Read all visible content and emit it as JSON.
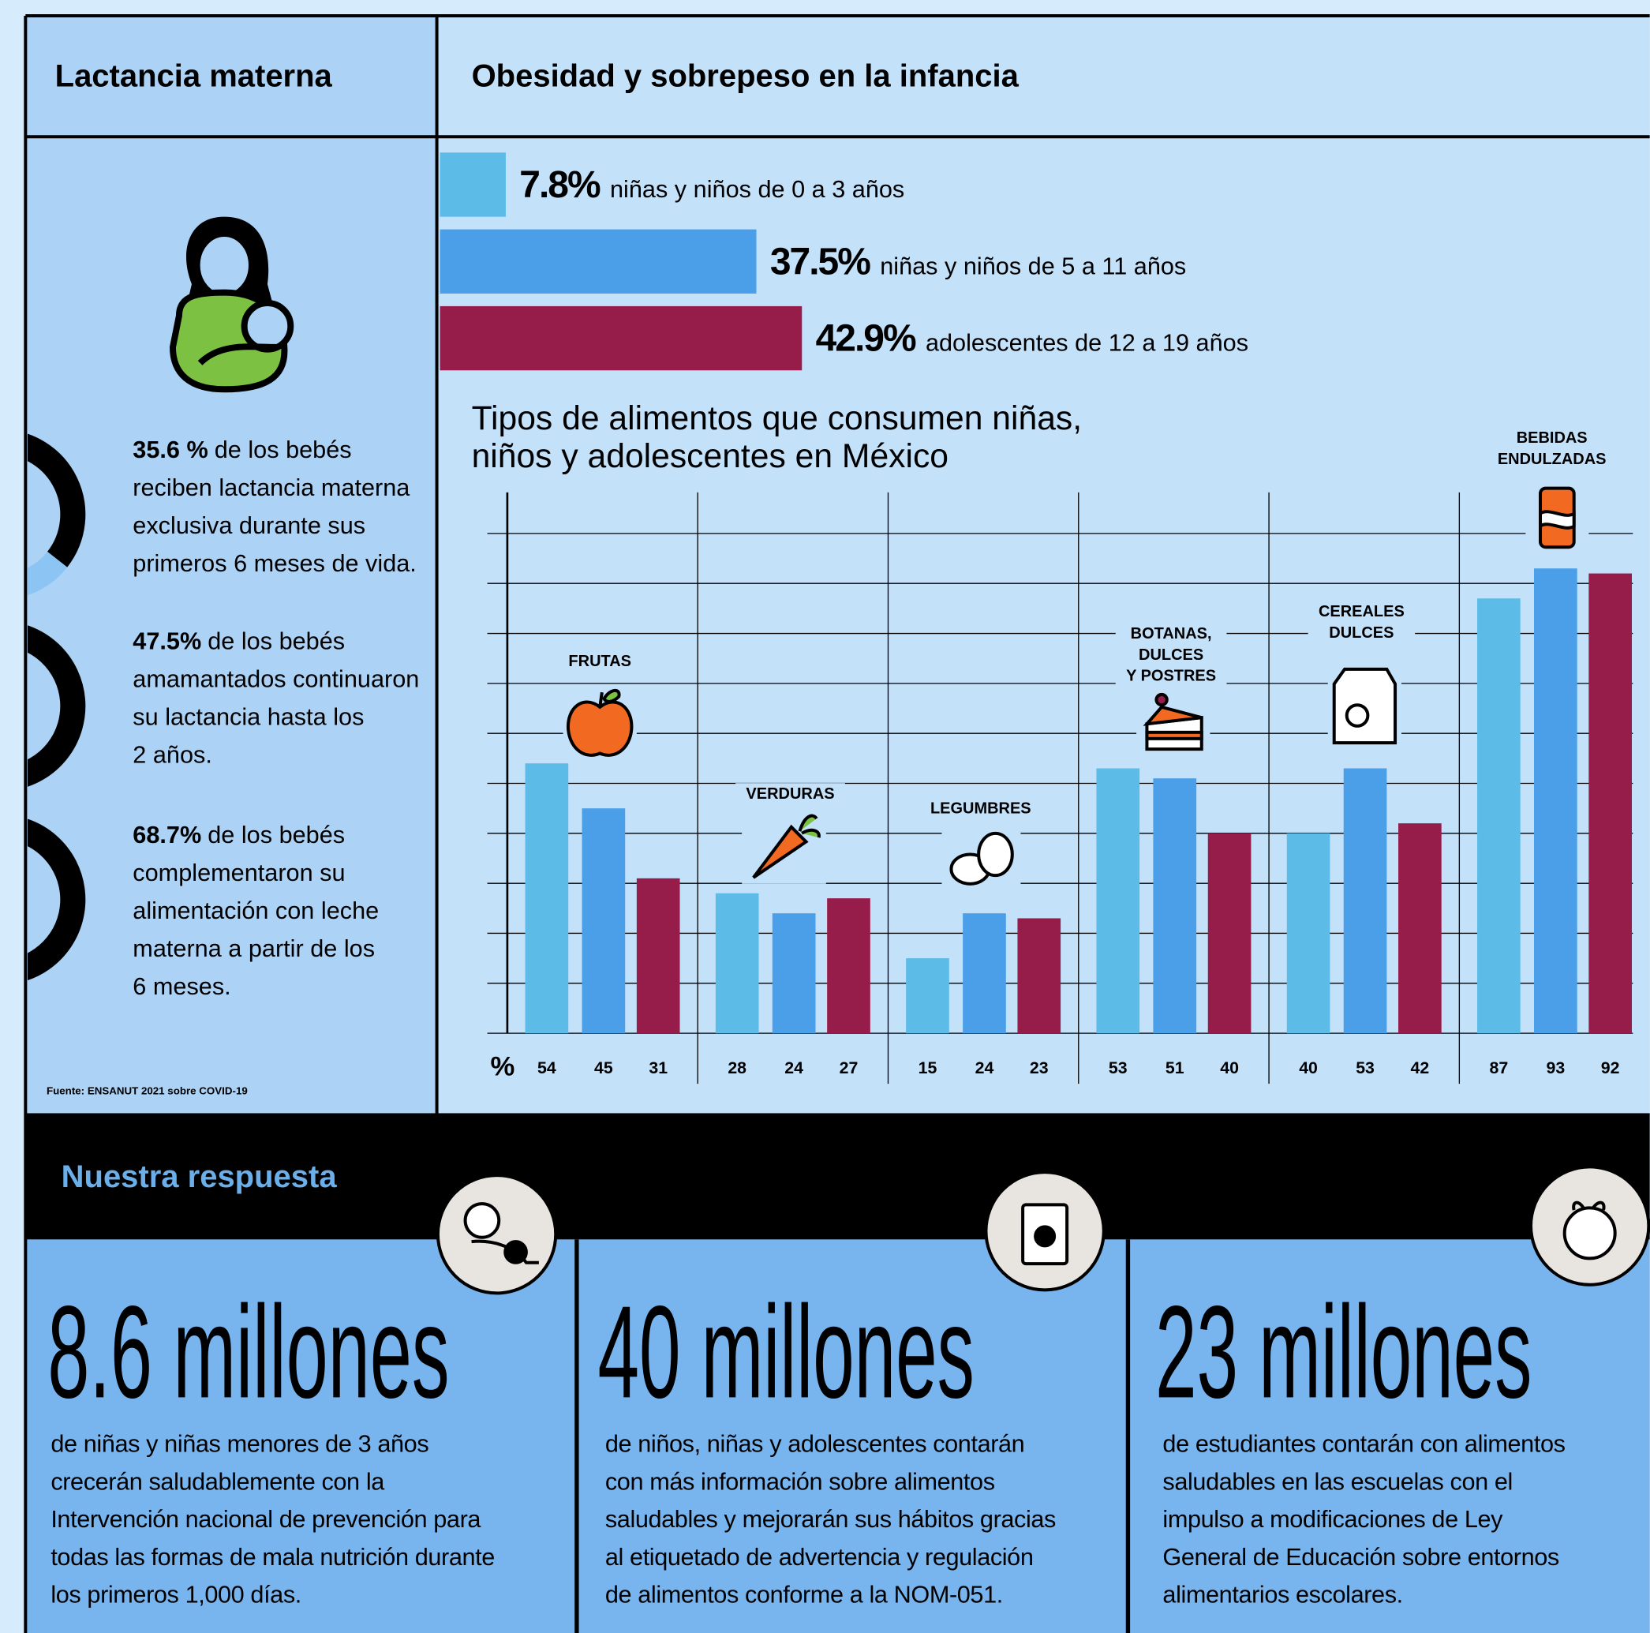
{
  "header": {
    "left": "Lactancia materna",
    "right": "Obesidad y sobrepeso en la infancia"
  },
  "source": "Fuente: ENSANUT 2021 sobre COVID-19",
  "chart_data": [
    {
      "type": "donut",
      "values": [
        35.6,
        47.5,
        68.7
      ],
      "value_labels": [
        "35.6 %",
        "47.5%",
        "68.7%"
      ],
      "descriptions": [
        [
          "de los bebés",
          "reciben lactancia materna",
          "exclusiva durante sus",
          "primeros 6 meses de vida."
        ],
        [
          "de los bebés",
          "amamantados continuaron",
          "su lactancia hasta los",
          "2 años."
        ],
        [
          "de los bebés",
          "complementaron su",
          "alimentación con leche",
          "materna a partir de los",
          "6 meses."
        ]
      ],
      "color": "#000000",
      "track_color": "#8cc4f4"
    },
    {
      "type": "hbar",
      "categories": [
        "niñas y niños de 0 a 3 años",
        "niñas y niños de 5 a 11 años",
        "adolescentes de 12 a 19 años"
      ],
      "values": [
        7.8,
        37.5,
        42.9
      ],
      "value_labels": [
        "7.8%",
        "37.5%",
        "42.9%"
      ],
      "colors": [
        "#5dbbe8",
        "#4a9fe8",
        "#961c4a"
      ]
    },
    {
      "type": "bar",
      "title": [
        "Tipos de alimentos que consumen niñas,",
        "niños y adolescentes en México"
      ],
      "ylabel": "%",
      "categories": [
        [
          "FRUTAS"
        ],
        [
          "VERDURAS"
        ],
        [
          "LEGUMBRES"
        ],
        [
          "BOTANAS,",
          "DULCES",
          "Y POSTRES"
        ],
        [
          "CEREALES",
          "DULCES"
        ],
        [
          "BEBIDAS",
          "ENDULZADAS"
        ]
      ],
      "series": [
        {
          "color": "#5dbbe8",
          "values": [
            54,
            28,
            15,
            53,
            40,
            87
          ]
        },
        {
          "color": "#4a9fe8",
          "values": [
            45,
            24,
            24,
            51,
            53,
            93
          ]
        },
        {
          "color": "#961c4a",
          "values": [
            31,
            27,
            23,
            40,
            42,
            92
          ]
        }
      ],
      "ylim": [
        0,
        100
      ],
      "yticks": [
        0,
        10,
        20,
        30,
        40,
        50,
        60,
        70,
        80,
        90,
        100
      ],
      "grid": true
    }
  ],
  "response": {
    "title": "Nuestra respuesta",
    "items": [
      {
        "number": "8.6 millones",
        "lines": [
          "de niñas y niñas menores de 3 años",
          "crecerán saludablemente con la",
          "Intervención nacional de prevención para",
          "todas las formas de mala nutrición durante",
          "los primeros 1,000 días."
        ]
      },
      {
        "number": "40 millones",
        "lines": [
          "de niños, niñas y adolescentes contarán",
          "con más información sobre alimentos",
          "saludables y mejorarán sus hábitos gracias",
          "al etiquetado de advertencia y regulación",
          "de alimentos conforme a la NOM-051."
        ]
      },
      {
        "number": "23 millones",
        "lines": [
          "de estudiantes contarán con alimentos",
          "saludables en las escuelas con el",
          "impulso a modificaciones de Ley",
          "General de Educación sobre entornos",
          "alimentarios escolares."
        ]
      }
    ]
  }
}
